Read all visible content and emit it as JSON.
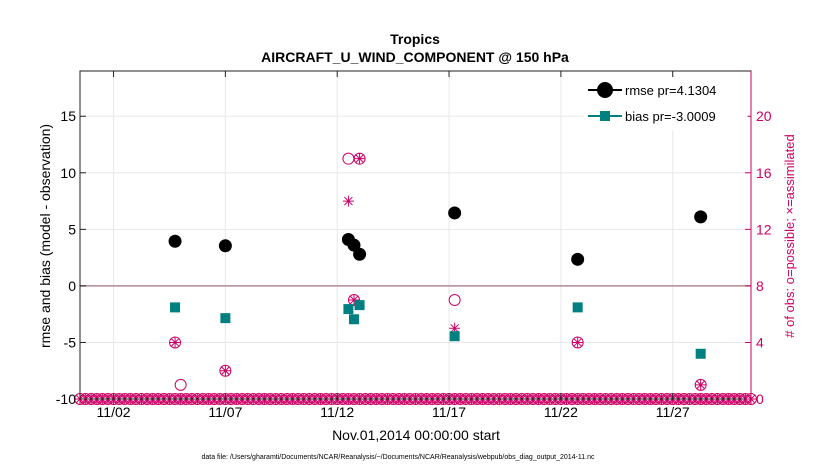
{
  "chart_data": {
    "type": "scatter",
    "title": "Tropics",
    "subtitle": "AIRCRAFT_U_WIND_COMPONENT @ 150 hPa",
    "xlabel": "Nov.01,2014 00:00:00 start",
    "ylabel": "rmse and bias (model - observation)",
    "y2label": "# of obs: o=possible; ×=assimilated",
    "footnote": "data file: /Users/gharamti/Documents/NCAR/Reanalysis/~/Documents/NCAR/Reanalysis/webpub/obs_diag_output_2014-11.nc",
    "xlim": [
      0.5,
      30.5
    ],
    "ylim": [
      -10,
      19
    ],
    "y2lim": [
      0,
      23.2
    ],
    "x_ticks": [
      {
        "value": 2,
        "label": "11/02"
      },
      {
        "value": 7,
        "label": "11/07"
      },
      {
        "value": 12,
        "label": "11/12"
      },
      {
        "value": 17,
        "label": "11/17"
      },
      {
        "value": 22,
        "label": "11/22"
      },
      {
        "value": 27,
        "label": "11/27"
      }
    ],
    "y_ticks": [
      {
        "value": -10,
        "label": "-10"
      },
      {
        "value": -5,
        "label": "-5"
      },
      {
        "value": 0,
        "label": "0"
      },
      {
        "value": 5,
        "label": "5"
      },
      {
        "value": 10,
        "label": "10"
      },
      {
        "value": 15,
        "label": "15"
      }
    ],
    "y2_ticks": [
      {
        "value": 0,
        "label": "0"
      },
      {
        "value": 4,
        "label": "4"
      },
      {
        "value": 8,
        "label": "8"
      },
      {
        "value": 12,
        "label": "12"
      },
      {
        "value": 16,
        "label": "16"
      },
      {
        "value": 20,
        "label": "20"
      }
    ],
    "series": [
      {
        "name": "rmse",
        "legend": "rmse pr=4.1304",
        "color": "#000000",
        "points": [
          [
            4.75,
            3.95
          ],
          [
            7.0,
            3.55
          ],
          [
            12.5,
            4.1
          ],
          [
            12.75,
            3.6
          ],
          [
            13.0,
            2.8
          ],
          [
            17.25,
            6.45
          ],
          [
            22.75,
            2.35
          ],
          [
            28.25,
            6.1
          ]
        ]
      },
      {
        "name": "bias",
        "legend": "bias pr=-3.0009",
        "color": "#008080",
        "points": [
          [
            4.75,
            -1.9
          ],
          [
            7.0,
            -2.85
          ],
          [
            12.5,
            -2.05
          ],
          [
            12.75,
            -2.95
          ],
          [
            13.0,
            -1.7
          ],
          [
            17.25,
            -4.45
          ],
          [
            22.75,
            -1.9
          ],
          [
            28.25,
            -6.0
          ]
        ]
      },
      {
        "name": "possible",
        "color": "#cc0066",
        "points": [
          [
            4.75,
            4
          ],
          [
            5.0,
            1
          ],
          [
            7.0,
            2
          ],
          [
            12.5,
            17
          ],
          [
            12.75,
            7
          ],
          [
            13.0,
            17
          ],
          [
            17.25,
            7
          ],
          [
            22.75,
            4
          ],
          [
            28.25,
            1
          ]
        ]
      },
      {
        "name": "assimilated",
        "color": "#cc0066",
        "points": [
          [
            4.75,
            4
          ],
          [
            7.0,
            2
          ],
          [
            12.5,
            14
          ],
          [
            12.75,
            7
          ],
          [
            13.0,
            17
          ],
          [
            17.25,
            5
          ],
          [
            22.75,
            4
          ],
          [
            28.25,
            1
          ]
        ]
      }
    ],
    "zero_obs_x_start": 0.5,
    "zero_obs_x_end": 30.5,
    "zero_obs_x_step": 0.25,
    "zero_line_color": "#b08a95",
    "accent_color": "#cc0066"
  }
}
